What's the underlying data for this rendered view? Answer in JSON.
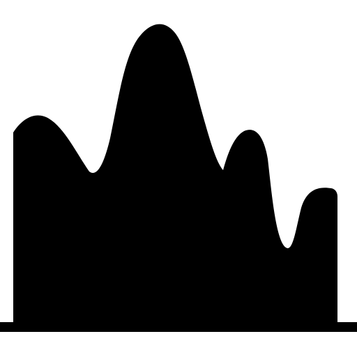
{
  "icon": {
    "name": "area-chart-icon",
    "fill_color": "#000000",
    "background_color": "#ffffff"
  }
}
